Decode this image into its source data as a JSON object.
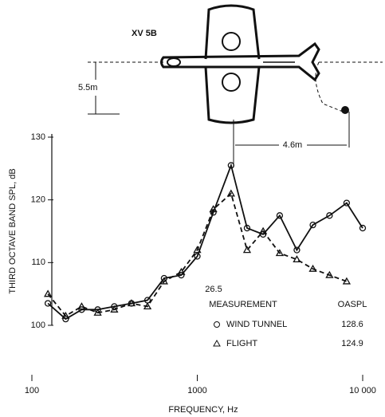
{
  "chart_data": {
    "type": "line",
    "diagram_labels": {
      "aircraft": "XV 5B",
      "height": "5.5m",
      "distance": "4.6m"
    },
    "annotation": "26.5",
    "y_label": "THIRD OCTAVE BAND SPL, dB",
    "x_label": "FREQUENCY, Hz",
    "legend_header": {
      "measurement": "MEASUREMENT",
      "oaspl": "OASPL"
    },
    "log_x": true,
    "x": [
      125,
      160,
      200,
      250,
      315,
      400,
      500,
      630,
      800,
      1000,
      1250,
      1600,
      2000,
      2500,
      3150,
      4000,
      5000,
      6300,
      8000,
      10000
    ],
    "series": [
      {
        "name": "WIND TUNNEL",
        "color": "#111111",
        "marker": "circle",
        "dash": false,
        "oaspl": 128.6,
        "values": [
          103.5,
          101,
          102.5,
          102.5,
          103,
          103.5,
          104,
          107.5,
          108,
          111,
          118,
          125.5,
          115.5,
          114.5,
          117.5,
          112,
          116,
          117.5,
          119.5,
          115.5
        ]
      },
      {
        "name": "FLIGHT",
        "color": "#111111",
        "marker": "triangle",
        "dash": true,
        "oaspl": 124.9,
        "values": [
          105,
          101.5,
          103,
          102,
          102.5,
          103.5,
          103,
          107,
          108.5,
          112,
          118.5,
          121,
          112,
          115,
          111.5,
          110.5,
          109,
          108,
          107,
          null
        ]
      }
    ],
    "xlim": [
      100,
      10000
    ],
    "xticks": [
      100,
      1000,
      {
        "value": 10000,
        "label": "10 000"
      }
    ],
    "ylim": [
      100,
      130
    ],
    "yticks": [
      100,
      110,
      120,
      130
    ]
  }
}
